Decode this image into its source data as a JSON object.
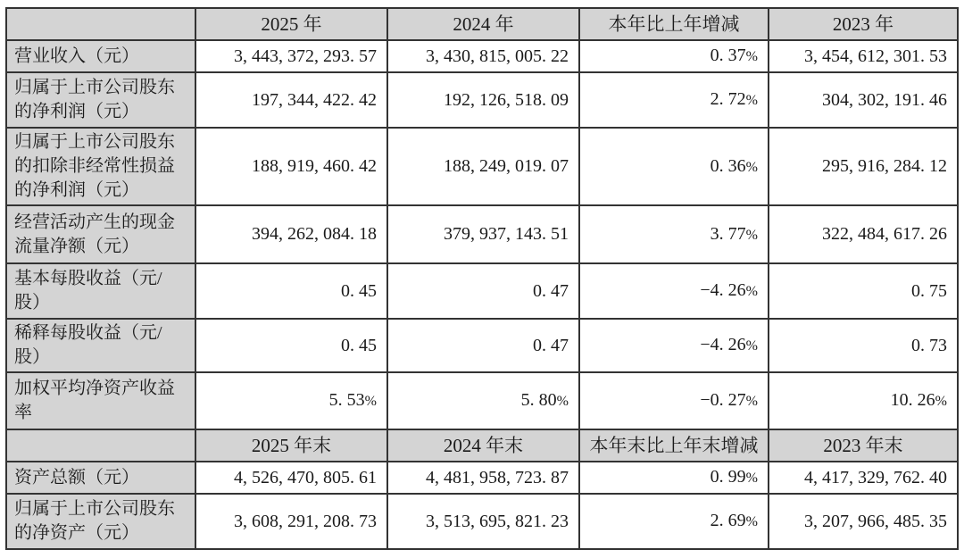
{
  "document": {
    "colors": {
      "header_background": "#d4d4d4",
      "label_background": "#d4d4d4",
      "border": "#333333",
      "text": "#1a1a1a",
      "cell_background": "#ffffff"
    },
    "sections": [
      {
        "header": [
          "",
          "2025 年",
          "2024 年",
          "本年比上年增减",
          "2023 年"
        ],
        "rows": [
          {
            "label": "营业收入（元）",
            "values": [
              "3, 443, 372, 293. 57",
              "3, 430, 815, 005. 22",
              "0. 37%",
              "3, 454, 612, 301. 53"
            ]
          },
          {
            "label": "归属于上市公司股东\n的净利润（元）",
            "values": [
              "197, 344, 422. 42",
              "192, 126, 518. 09",
              "2. 72%",
              "304, 302, 191. 46"
            ]
          },
          {
            "label": "归属于上市公司股东\n的扣除非经常性损益\n的净利润（元）",
            "values": [
              "188, 919, 460. 42",
              "188, 249, 019. 07",
              "0. 36%",
              "295, 916, 284. 12"
            ]
          },
          {
            "label": "经营活动产生的现金\n流量净额（元）",
            "values": [
              "394, 262, 084. 18",
              "379, 937, 143. 51",
              "3. 77%",
              "322, 484, 617. 26"
            ]
          },
          {
            "label": "基本每股收益（元/\n股）",
            "values": [
              "0. 45",
              "0. 47",
              "−4. 26%",
              "0. 75"
            ]
          },
          {
            "label": "稀释每股收益（元/\n股）",
            "values": [
              "0. 45",
              "0. 47",
              "−4. 26%",
              "0. 73"
            ]
          },
          {
            "label": "加权平均净资产收益\n率",
            "values": [
              "5. 53%",
              "5. 80%",
              "−0. 27%",
              "10. 26%"
            ]
          }
        ]
      },
      {
        "header": [
          "",
          "2025 年末",
          "2024 年末",
          "本年末比上年末增减",
          "2023 年末"
        ],
        "rows": [
          {
            "label": "资产总额（元）",
            "values": [
              "4, 526, 470, 805. 61",
              "4, 481, 958, 723. 87",
              "0. 99%",
              "4, 417, 329, 762. 40"
            ]
          },
          {
            "label": "归属于上市公司股东\n的净资产（元）",
            "values": [
              "3, 608, 291, 208. 73",
              "3, 513, 695, 821. 23",
              "2. 69%",
              "3, 207, 966, 485. 35"
            ]
          }
        ]
      }
    ]
  }
}
